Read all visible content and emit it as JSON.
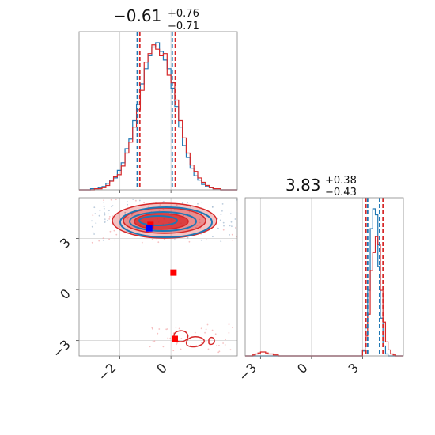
{
  "chart_data": {
    "type": "corner",
    "colors": {
      "blue": "#1f77b4",
      "red": "#d62728",
      "marker_blue": "#0000ff",
      "marker_red": "#ff0000"
    },
    "panels": [
      {
        "id": "hist1",
        "type": "histogram",
        "title": {
          "main": "−0.61",
          "sup": "+0.76",
          "sub": "−0.71"
        },
        "xlim": [
          -3.6,
          2.6
        ],
        "xticks": [
          -2,
          0
        ],
        "quantiles_blue": [
          -1.32,
          0.05
        ],
        "quantiles_red": [
          -1.22,
          0.17
        ],
        "bin_edges": [
          -3.6,
          -3.45,
          -3.3,
          -3.15,
          -3.0,
          -2.85,
          -2.7,
          -2.55,
          -2.4,
          -2.25,
          -2.1,
          -1.95,
          -1.8,
          -1.65,
          -1.5,
          -1.35,
          -1.2,
          -1.05,
          -0.9,
          -0.75,
          -0.6,
          -0.45,
          -0.3,
          -0.15,
          0.0,
          0.15,
          0.3,
          0.45,
          0.6,
          0.75,
          0.9,
          1.05,
          1.2,
          1.35,
          1.5,
          1.65,
          1.8,
          1.95,
          2.1,
          2.25,
          2.4,
          2.6
        ],
        "counts_blue": [
          0,
          0,
          0,
          1,
          1,
          2,
          3,
          6,
          9,
          11,
          18,
          25,
          38,
          47,
          64,
          79,
          98,
          112,
          124,
          132,
          136,
          128,
          120,
          112,
          94,
          77,
          58,
          41,
          30,
          20,
          13,
          9,
          5,
          3,
          2,
          1,
          1,
          0,
          0,
          0,
          0
        ],
        "counts_red": [
          0,
          0,
          0,
          0,
          1,
          1,
          2,
          4,
          8,
          12,
          14,
          22,
          34,
          44,
          58,
          74,
          92,
          118,
          126,
          134,
          130,
          124,
          126,
          106,
          99,
          83,
          64,
          48,
          34,
          23,
          17,
          11,
          7,
          4,
          2,
          1,
          1,
          0,
          0,
          0,
          0
        ]
      },
      {
        "id": "hist2",
        "type": "histogram",
        "title": {
          "main": "3.83",
          "sup": "+0.38",
          "sub": "−0.43"
        },
        "xlim": [
          -3.9,
          5.4
        ],
        "xticks": [
          -3,
          0,
          3
        ],
        "quantiles_blue": [
          3.3,
          4.0
        ],
        "quantiles_red": [
          3.2,
          4.2
        ],
        "bin_edges": [
          -3.9,
          -3.75,
          -3.6,
          -3.45,
          -3.3,
          -3.15,
          -3.0,
          -2.85,
          -2.7,
          -2.55,
          -2.4,
          -2.25,
          -2.1,
          -1.95,
          -1.8,
          3.0,
          3.15,
          3.3,
          3.45,
          3.6,
          3.75,
          3.9,
          4.05,
          4.2,
          4.35,
          4.5,
          4.65,
          4.8,
          4.95,
          5.1,
          5.25,
          5.4
        ],
        "counts_blue": [
          0,
          0,
          0,
          0,
          0,
          0,
          0,
          0,
          0,
          0,
          0,
          0,
          0,
          0,
          0,
          5,
          28,
          66,
          128,
          148,
          142,
          90,
          38,
          10,
          2,
          0,
          0,
          0,
          0,
          0,
          0
        ],
        "counts_red": [
          0,
          0,
          0,
          1,
          2,
          3,
          4,
          4,
          3,
          2,
          2,
          1,
          1,
          0,
          0,
          6,
          20,
          42,
          86,
          104,
          120,
          112,
          66,
          34,
          14,
          6,
          2,
          1,
          0,
          0,
          0
        ]
      },
      {
        "id": "scatter",
        "type": "contour",
        "xlim": [
          -3.6,
          2.6
        ],
        "ylim": [
          -3.9,
          5.4
        ],
        "xticks": [
          -2,
          0
        ],
        "yticks": [
          3,
          0,
          -3
        ],
        "markers": [
          {
            "x": -0.8,
            "y": 3.8,
            "color": "red"
          },
          {
            "x": -0.85,
            "y": 3.6,
            "color": "blue"
          },
          {
            "x": 0.1,
            "y": 1.0,
            "color": "red"
          },
          {
            "x": 0.15,
            "y": -2.9,
            "color": "red"
          }
        ]
      }
    ]
  }
}
